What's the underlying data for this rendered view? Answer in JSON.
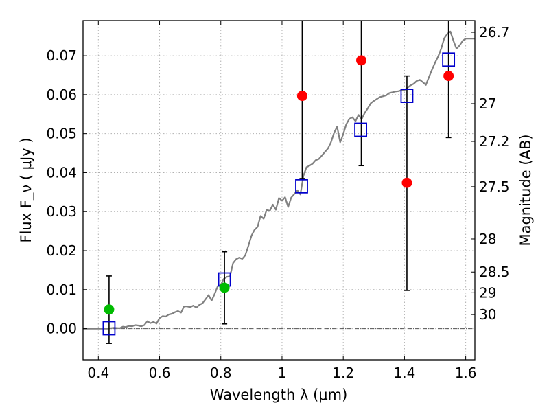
{
  "chart_data": {
    "type": "scatter",
    "xlabel": "Wavelength  λ (μm)",
    "ylabel": "Flux  F_ν  ( μJy )",
    "ylabel_right": "Magnitude (AB)",
    "xlim": [
      0.35,
      1.63
    ],
    "ylim": [
      -0.008,
      0.079
    ],
    "grid": true,
    "x_ticks": [
      0.4,
      0.6,
      0.8,
      1.0,
      1.2,
      1.4,
      1.6
    ],
    "x_tick_labels": [
      "0.4",
      "0.6",
      "0.8",
      "1",
      "1.2",
      "1.4",
      "1.6"
    ],
    "y_ticks": [
      0.0,
      0.01,
      0.02,
      0.03,
      0.04,
      0.05,
      0.06,
      0.07
    ],
    "y_tick_labels": [
      "0.00",
      "0.01",
      "0.02",
      "0.03",
      "0.04",
      "0.05",
      "0.06",
      "0.07"
    ],
    "right_ticks": [
      {
        "label": "26.7",
        "flux": 0.076
      },
      {
        "label": "27",
        "flux": 0.0577
      },
      {
        "label": "27.2",
        "flux": 0.048
      },
      {
        "label": "27.5",
        "flux": 0.0364
      },
      {
        "label": "28",
        "flux": 0.023
      },
      {
        "label": "28.5",
        "flux": 0.0145
      },
      {
        "label": "29",
        "flux": 0.0092
      },
      {
        "label": "30",
        "flux": 0.0036
      }
    ],
    "colors": {
      "model_sed": "#808080",
      "model_points": "#0000cc",
      "observed_detection": "#ff0000",
      "observed_low": "#00bb00",
      "error_bars": "#000000",
      "grid": "#b0b0b0"
    },
    "series": [
      {
        "kind": "line",
        "points": [
          [
            0.35,
            0.0
          ],
          [
            0.43,
            0.0
          ],
          [
            0.45,
            0.0002
          ],
          [
            0.47,
            0.0001
          ],
          [
            0.48,
            0.0005
          ],
          [
            0.49,
            0.0004
          ],
          [
            0.5,
            0.0007
          ],
          [
            0.51,
            0.0006
          ],
          [
            0.52,
            0.0009
          ],
          [
            0.53,
            0.0008
          ],
          [
            0.54,
            0.0006
          ],
          [
            0.55,
            0.0009
          ],
          [
            0.56,
            0.0019
          ],
          [
            0.57,
            0.0014
          ],
          [
            0.58,
            0.0017
          ],
          [
            0.59,
            0.0013
          ],
          [
            0.6,
            0.0027
          ],
          [
            0.61,
            0.0032
          ],
          [
            0.62,
            0.0031
          ],
          [
            0.63,
            0.0036
          ],
          [
            0.64,
            0.0038
          ],
          [
            0.65,
            0.0042
          ],
          [
            0.66,
            0.0045
          ],
          [
            0.67,
            0.0041
          ],
          [
            0.68,
            0.0057
          ],
          [
            0.69,
            0.0057
          ],
          [
            0.7,
            0.0055
          ],
          [
            0.71,
            0.0059
          ],
          [
            0.72,
            0.0054
          ],
          [
            0.73,
            0.0061
          ],
          [
            0.74,
            0.0065
          ],
          [
            0.75,
            0.0075
          ],
          [
            0.76,
            0.0086
          ],
          [
            0.77,
            0.0072
          ],
          [
            0.78,
            0.0089
          ],
          [
            0.79,
            0.0109
          ],
          [
            0.8,
            0.0112
          ],
          [
            0.81,
            0.0128
          ],
          [
            0.82,
            0.0133
          ],
          [
            0.83,
            0.0134
          ],
          [
            0.84,
            0.0168
          ],
          [
            0.85,
            0.0178
          ],
          [
            0.86,
            0.0182
          ],
          [
            0.87,
            0.0179
          ],
          [
            0.88,
            0.0188
          ],
          [
            0.89,
            0.0212
          ],
          [
            0.9,
            0.0238
          ],
          [
            0.91,
            0.0253
          ],
          [
            0.92,
            0.0261
          ],
          [
            0.93,
            0.0289
          ],
          [
            0.94,
            0.0282
          ],
          [
            0.95,
            0.0305
          ],
          [
            0.96,
            0.0302
          ],
          [
            0.97,
            0.0318
          ],
          [
            0.98,
            0.0305
          ],
          [
            0.99,
            0.0335
          ],
          [
            1.0,
            0.0328
          ],
          [
            1.01,
            0.0337
          ],
          [
            1.02,
            0.0312
          ],
          [
            1.03,
            0.0336
          ],
          [
            1.04,
            0.0345
          ],
          [
            1.05,
            0.0355
          ],
          [
            1.06,
            0.0344
          ],
          [
            1.07,
            0.0392
          ],
          [
            1.08,
            0.0414
          ],
          [
            1.09,
            0.0418
          ],
          [
            1.1,
            0.0423
          ],
          [
            1.11,
            0.0432
          ],
          [
            1.12,
            0.0435
          ],
          [
            1.13,
            0.0444
          ],
          [
            1.14,
            0.0453
          ],
          [
            1.15,
            0.0462
          ],
          [
            1.16,
            0.0478
          ],
          [
            1.17,
            0.0502
          ],
          [
            1.18,
            0.0518
          ],
          [
            1.19,
            0.0478
          ],
          [
            1.2,
            0.0499
          ],
          [
            1.21,
            0.0524
          ],
          [
            1.22,
            0.0538
          ],
          [
            1.23,
            0.0542
          ],
          [
            1.24,
            0.0532
          ],
          [
            1.25,
            0.0548
          ],
          [
            1.26,
            0.0537
          ],
          [
            1.27,
            0.0553
          ],
          [
            1.28,
            0.0565
          ],
          [
            1.29,
            0.0578
          ],
          [
            1.3,
            0.0584
          ],
          [
            1.31,
            0.0589
          ],
          [
            1.32,
            0.0594
          ],
          [
            1.33,
            0.0596
          ],
          [
            1.34,
            0.0598
          ],
          [
            1.35,
            0.0604
          ],
          [
            1.36,
            0.0606
          ],
          [
            1.37,
            0.0608
          ],
          [
            1.38,
            0.0609
          ],
          [
            1.39,
            0.0611
          ],
          [
            1.4,
            0.0612
          ],
          [
            1.41,
            0.0618
          ],
          [
            1.42,
            0.0624
          ],
          [
            1.43,
            0.0628
          ],
          [
            1.44,
            0.0635
          ],
          [
            1.45,
            0.0638
          ],
          [
            1.46,
            0.0632
          ],
          [
            1.47,
            0.0625
          ],
          [
            1.48,
            0.0645
          ],
          [
            1.49,
            0.0664
          ],
          [
            1.5,
            0.0682
          ],
          [
            1.51,
            0.0698
          ],
          [
            1.52,
            0.0718
          ],
          [
            1.53,
            0.0745
          ],
          [
            1.54,
            0.0756
          ],
          [
            1.55,
            0.0762
          ],
          [
            1.56,
            0.0738
          ],
          [
            1.57,
            0.0718
          ],
          [
            1.58,
            0.0726
          ],
          [
            1.59,
            0.0738
          ],
          [
            1.6,
            0.0744
          ],
          [
            1.63,
            0.0744
          ]
        ]
      },
      {
        "kind": "model_points",
        "points": [
          [
            0.435,
            0.0001
          ],
          [
            0.812,
            0.0126
          ],
          [
            1.064,
            0.0365
          ],
          [
            1.257,
            0.051
          ],
          [
            1.408,
            0.0597
          ],
          [
            1.544,
            0.069
          ]
        ]
      },
      {
        "kind": "observed_detection",
        "points": [
          [
            1.066,
            0.0597
          ],
          [
            1.259,
            0.0688
          ],
          [
            1.408,
            0.0374
          ],
          [
            1.544,
            0.0648
          ]
        ]
      },
      {
        "kind": "observed_low",
        "points": [
          [
            0.435,
            0.0049
          ],
          [
            0.812,
            0.0105
          ]
        ]
      },
      {
        "kind": "error_bars",
        "bars": [
          {
            "x": 0.435,
            "low": -0.0038,
            "high": 0.0135
          },
          {
            "x": 0.812,
            "low": 0.0012,
            "high": 0.0197
          },
          {
            "x": 1.066,
            "low": 0.0385,
            "high": 0.079
          },
          {
            "x": 1.259,
            "low": 0.0418,
            "high": 0.079
          },
          {
            "x": 1.408,
            "low": 0.0098,
            "high": 0.0648
          },
          {
            "x": 1.544,
            "low": 0.049,
            "high": 0.079
          }
        ]
      }
    ]
  }
}
